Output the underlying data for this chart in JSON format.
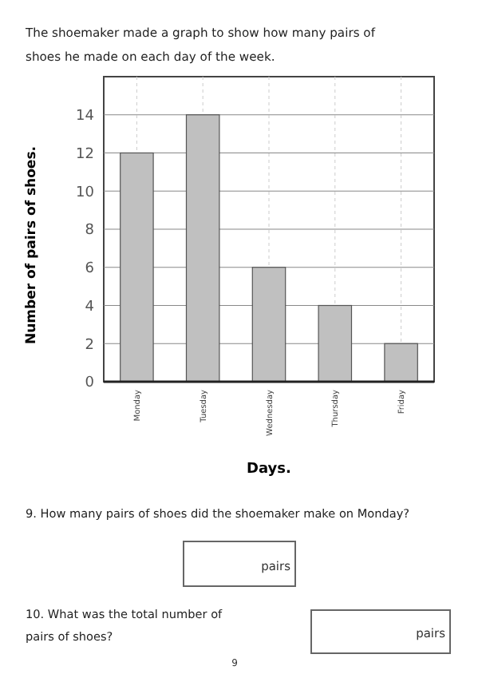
{
  "chart_data": {
    "type": "bar",
    "title": "The shoemaker made a graph to show how many pairs of shoes he made on each day of the week.",
    "xlabel": "Days.",
    "ylabel": "Number of pairs of shoes.",
    "categories": [
      "Monday",
      "Tuesday",
      "Wednesday",
      "Thursday",
      "Friday"
    ],
    "values": [
      12,
      14,
      6,
      4,
      2
    ],
    "color": "#c0c0c0",
    "ylim": [
      0,
      16
    ],
    "yticks": [
      0,
      2,
      4,
      6,
      8,
      10,
      12,
      14
    ],
    "grid": true,
    "annotations": [
      "9. How many pairs of shoes did the shoemaker make on Monday?",
      "pairs",
      "10. What was the total number of pairs of shoes?",
      "pairs",
      "9"
    ]
  }
}
